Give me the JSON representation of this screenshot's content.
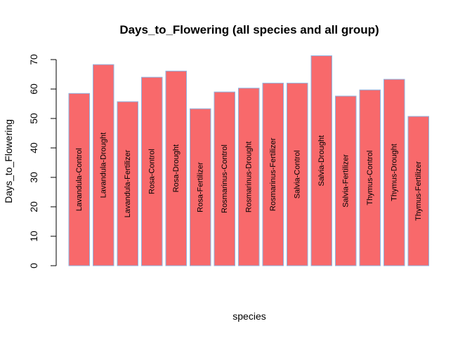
{
  "chart_data": {
    "type": "bar",
    "title": "Days_to_Flowering (all species and all group)",
    "xlabel": "species",
    "ylabel": "Days_to_Flowering",
    "ylim": [
      0,
      70
    ],
    "yticks": [
      0,
      10,
      20,
      30,
      40,
      50,
      60,
      70
    ],
    "grid": false,
    "legend": "none",
    "bar_color": "#F8696B",
    "bar_border_color": "#8DB4E2",
    "categories": [
      "Lavandula-Control",
      "Lavandula-Drought",
      "Lavandula-Fertilizer",
      "Rosa-Control",
      "Rosa-Drought",
      "Rosa-Fertilizer",
      "Rosmarinus-Control",
      "Rosmarinus-Drought",
      "Rosmarinus-Fertilizer",
      "Salvia-Control",
      "Salvia-Drought",
      "Salvia-Fertilizer",
      "Thymus-Control",
      "Thymus-Drought",
      "Thymus-Fertilizer"
    ],
    "values": [
      58.5,
      68.3,
      55.7,
      64.0,
      66.1,
      53.3,
      59.0,
      60.3,
      62.0,
      62.0,
      71.3,
      57.6,
      59.7,
      63.3,
      50.7
    ]
  }
}
